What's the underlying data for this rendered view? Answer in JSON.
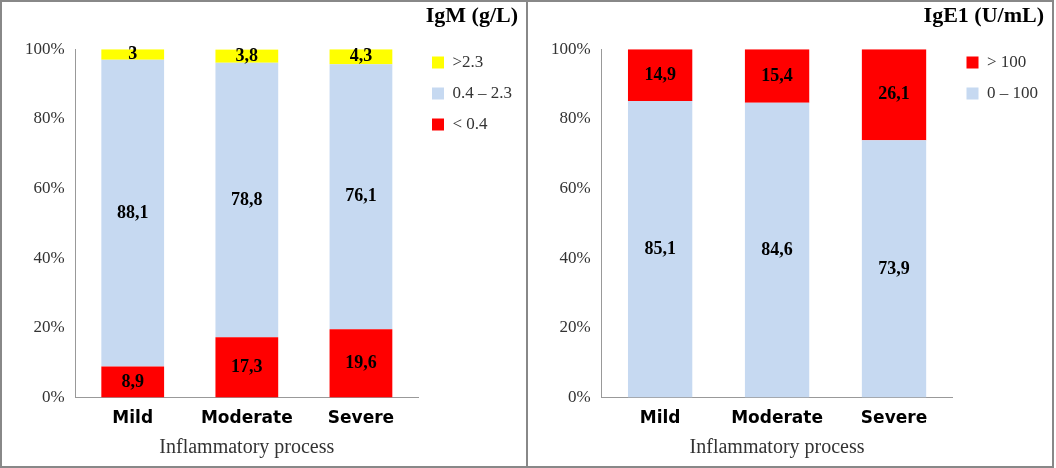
{
  "chart_data": [
    {
      "type": "bar",
      "title": "IgM (g/L)",
      "xlabel": "Inflammatory process",
      "categories": [
        "Mild",
        "Moderate",
        "Severe"
      ],
      "stacked": true,
      "series": [
        {
          "name": "< 0.4",
          "color": "#ff0000",
          "values": [
            8.9,
            17.3,
            19.6
          ],
          "value_labels": [
            "8,9",
            "17,3",
            "19,6"
          ]
        },
        {
          "name": "0.4 – 2.3",
          "color": "#c6d9f1",
          "values": [
            88.1,
            78.8,
            76.1
          ],
          "value_labels": [
            "88,1",
            "78,8",
            "76,1"
          ]
        },
        {
          "name": ">2.3",
          "color": "#ffff00",
          "values": [
            3,
            3.8,
            4.3
          ],
          "value_labels": [
            "3",
            "3,8",
            "4,3"
          ]
        }
      ],
      "ylim": [
        0,
        100
      ],
      "yticks": [
        {
          "value": 0,
          "label": "0%"
        },
        {
          "value": 20,
          "label": "20%"
        },
        {
          "value": 40,
          "label": "40%"
        },
        {
          "value": 60,
          "label": "60%"
        },
        {
          "value": 80,
          "label": "80%"
        },
        {
          "value": 100,
          "label": "100%"
        }
      ],
      "grid": false,
      "legend": "right"
    },
    {
      "type": "bar",
      "title": "IgE1  (U/mL)",
      "xlabel": "Inflammatory process",
      "categories": [
        "Mild",
        "Moderate",
        "Severe"
      ],
      "stacked": true,
      "series": [
        {
          "name": "0 – 100",
          "color": "#c6d9f1",
          "values": [
            85.1,
            84.6,
            73.9
          ],
          "value_labels": [
            "85,1",
            "84,6",
            "73,9"
          ]
        },
        {
          "name": "> 100",
          "color": "#ff0000",
          "values": [
            14.9,
            15.4,
            26.1
          ],
          "value_labels": [
            "14,9",
            "15,4",
            "26,1"
          ]
        }
      ],
      "ylim": [
        0,
        100
      ],
      "yticks": [
        {
          "value": 0,
          "label": "0%"
        },
        {
          "value": 20,
          "label": "20%"
        },
        {
          "value": 40,
          "label": "40%"
        },
        {
          "value": 60,
          "label": "60%"
        },
        {
          "value": 80,
          "label": "80%"
        },
        {
          "value": 100,
          "label": "100%"
        }
      ],
      "grid": false,
      "legend": "right"
    }
  ]
}
